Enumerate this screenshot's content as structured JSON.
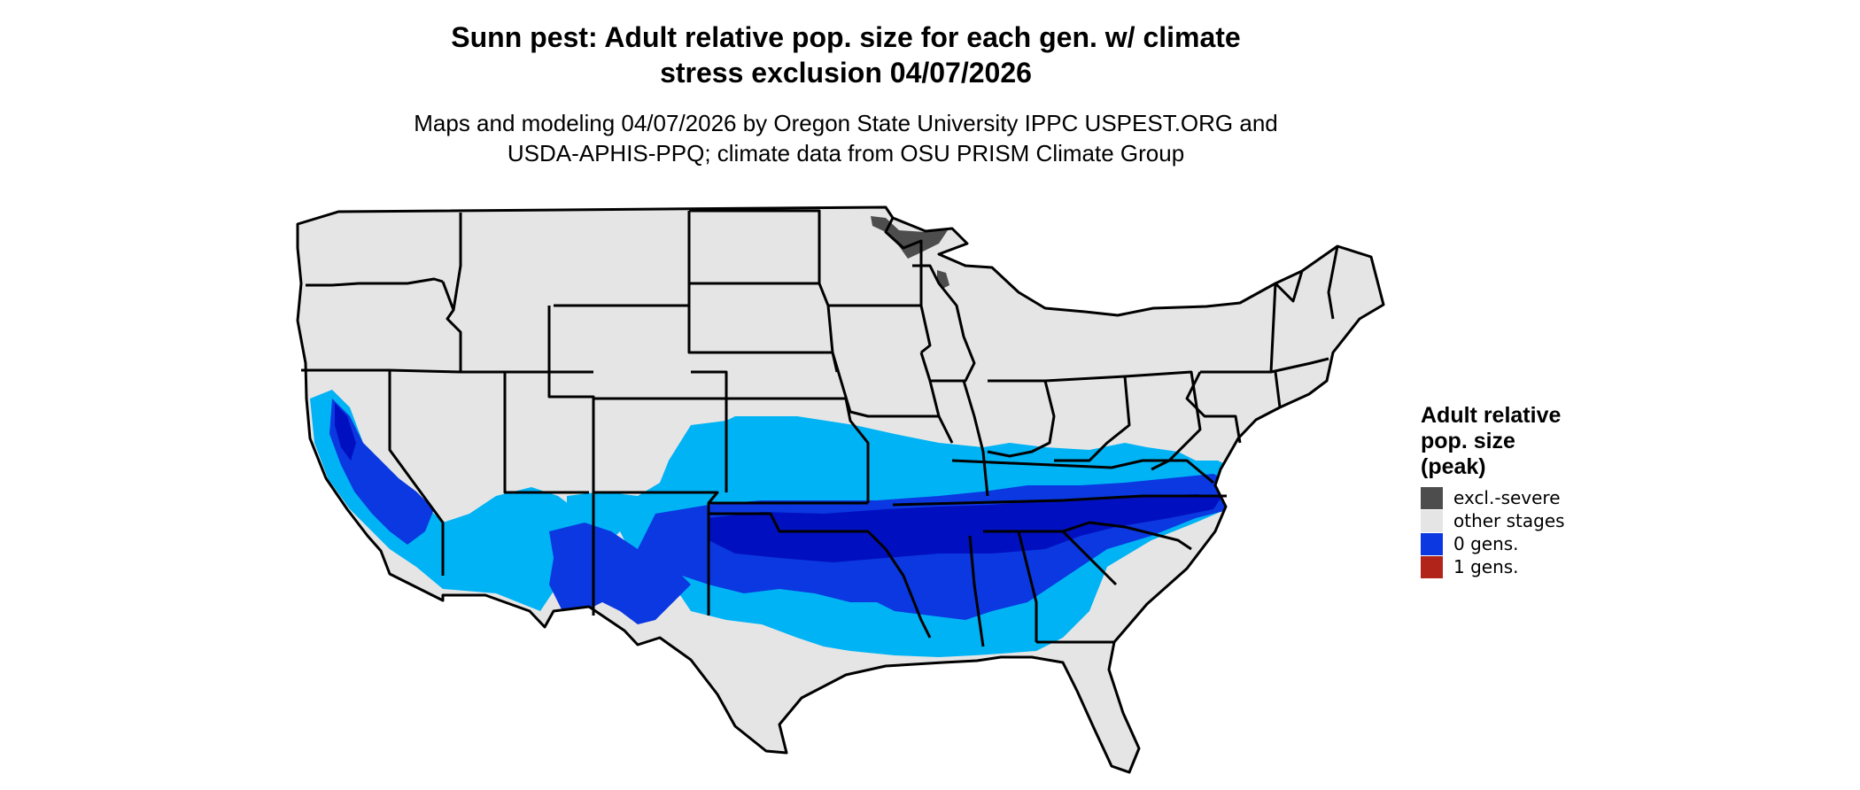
{
  "title": {
    "line1": "Sunn pest: Adult relative pop. size for each gen. w/ climate",
    "line2": "stress exclusion 04/07/2026"
  },
  "subtitle": {
    "line1": "Maps and modeling 04/07/2026 by Oregon State University IPPC USPEST.ORG and",
    "line2": "USDA-APHIS-PPQ; climate data from OSU PRISM Climate Group"
  },
  "legend": {
    "title_lines": [
      "Adult relative",
      "pop. size",
      "(peak)"
    ],
    "items": [
      {
        "label": "excl.-severe",
        "color": "#4d4d4d"
      },
      {
        "label": "other stages",
        "color": "#e5e5e5"
      },
      {
        "label": "0 gens.",
        "color": "#0b38e0"
      },
      {
        "label": "1 gens.",
        "color": "#b0241a"
      }
    ]
  },
  "map_colors": {
    "land": "#e5e5e5",
    "border": "#000000",
    "excluded": "#4d4d4d",
    "zero_gens_light": "#00b3f5",
    "zero_gens_mid": "#0b38e0",
    "zero_gens_dark": "#0010c0"
  }
}
